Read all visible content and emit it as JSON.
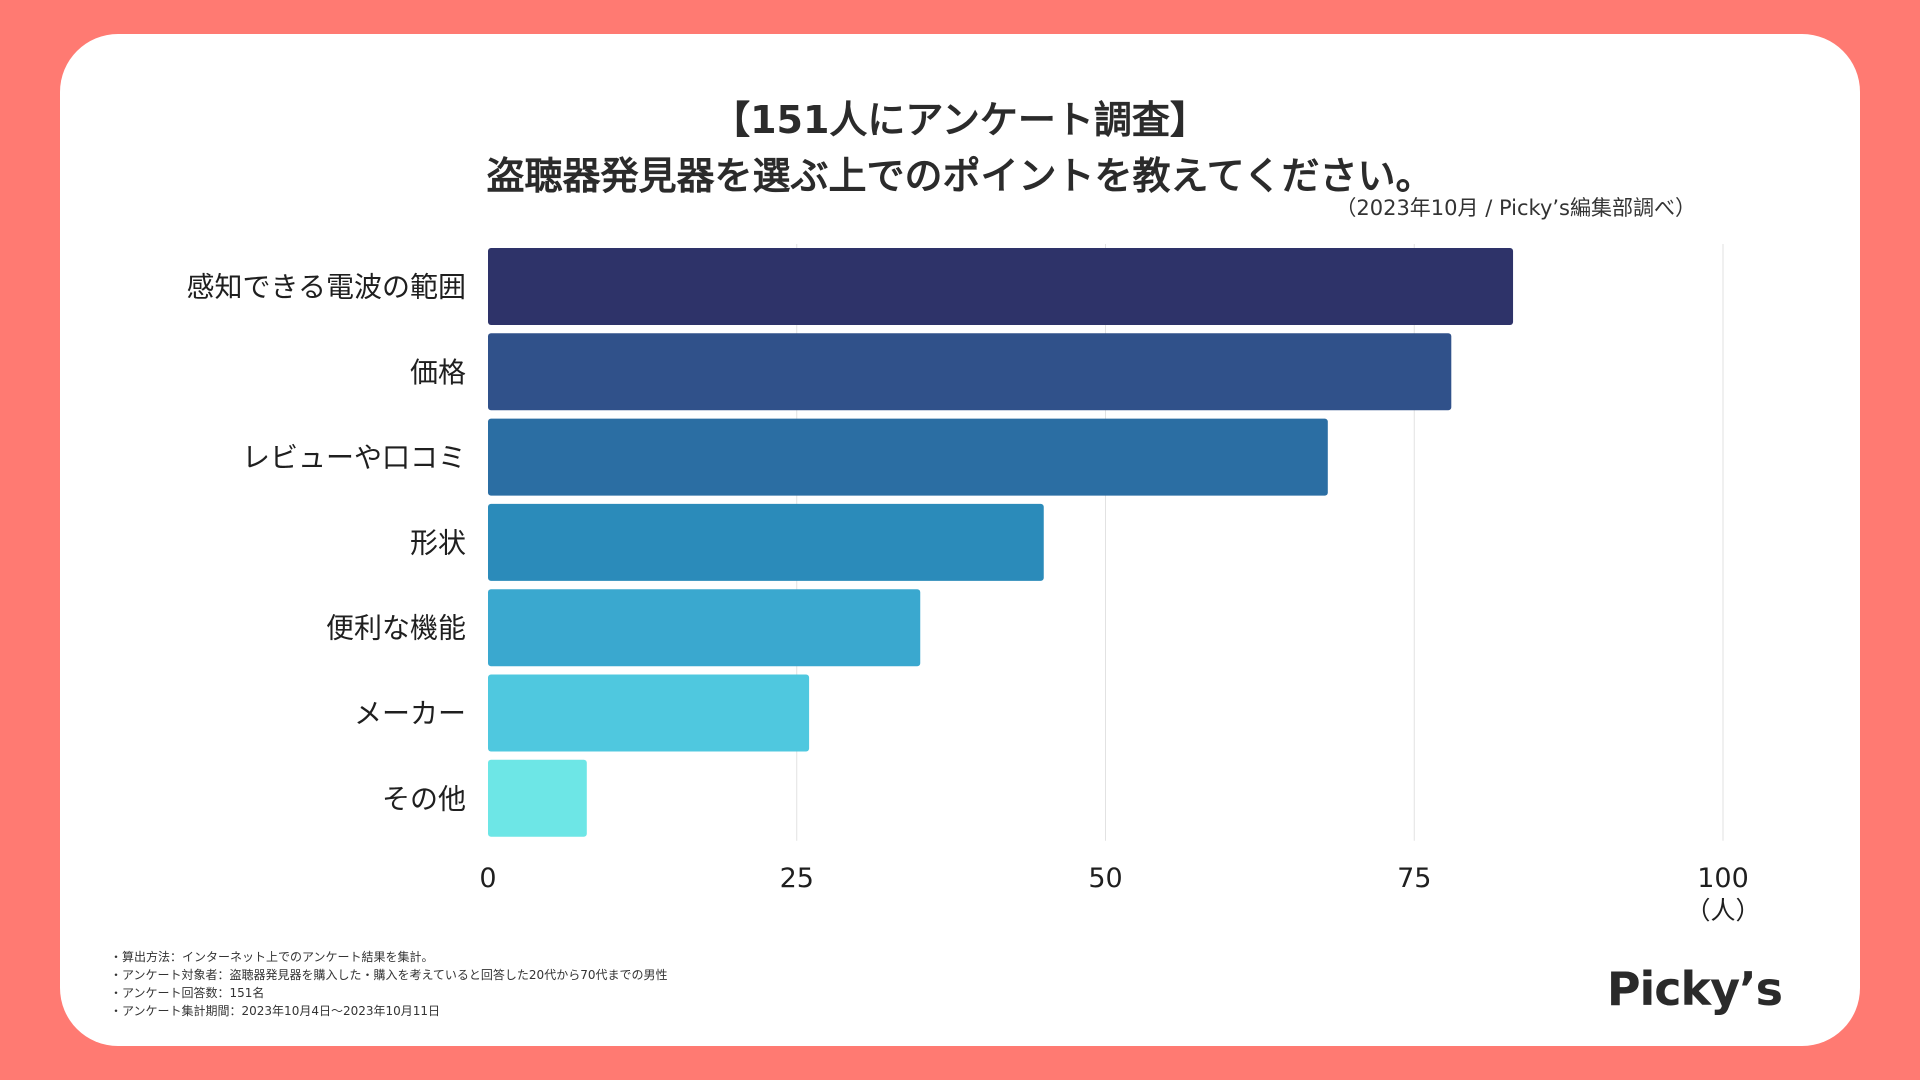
{
  "title": {
    "line1": "【151人にアンケート調査】",
    "line2": "盗聴器発見器を選ぶ上でのポイントを教えてください。"
  },
  "source": "（2023年10月 / Picky’s編集部調べ）",
  "chart_data": {
    "type": "bar",
    "orientation": "horizontal",
    "categories": [
      "感知できる電波の範囲",
      "価格",
      "レビューや口コミ",
      "形状",
      "便利な機能",
      "メーカー",
      "その他"
    ],
    "values": [
      83,
      78,
      68,
      45,
      35,
      26,
      8
    ],
    "colors": [
      "#2e3369",
      "#30518a",
      "#2b6ea3",
      "#2b8bba",
      "#3aa8cf",
      "#4fc8df",
      "#6de6e6"
    ],
    "xlim": [
      0,
      100
    ],
    "xticks": [
      "0",
      "25",
      "50",
      "75",
      "100"
    ],
    "xtick_values": [
      0,
      25,
      50,
      75,
      100
    ],
    "unit": "（人）",
    "grid": true
  },
  "notes": [
    "・算出方法：インターネット上でのアンケート結果を集計。",
    "・アンケート対象者：盗聴器発見器を購入した・購入を考えていると回答した20代から70代までの男性",
    "・アンケート回答数：151名",
    "・アンケート集計期間：2023年10月4日〜2023年10月11日"
  ],
  "logo": "Picky’s"
}
